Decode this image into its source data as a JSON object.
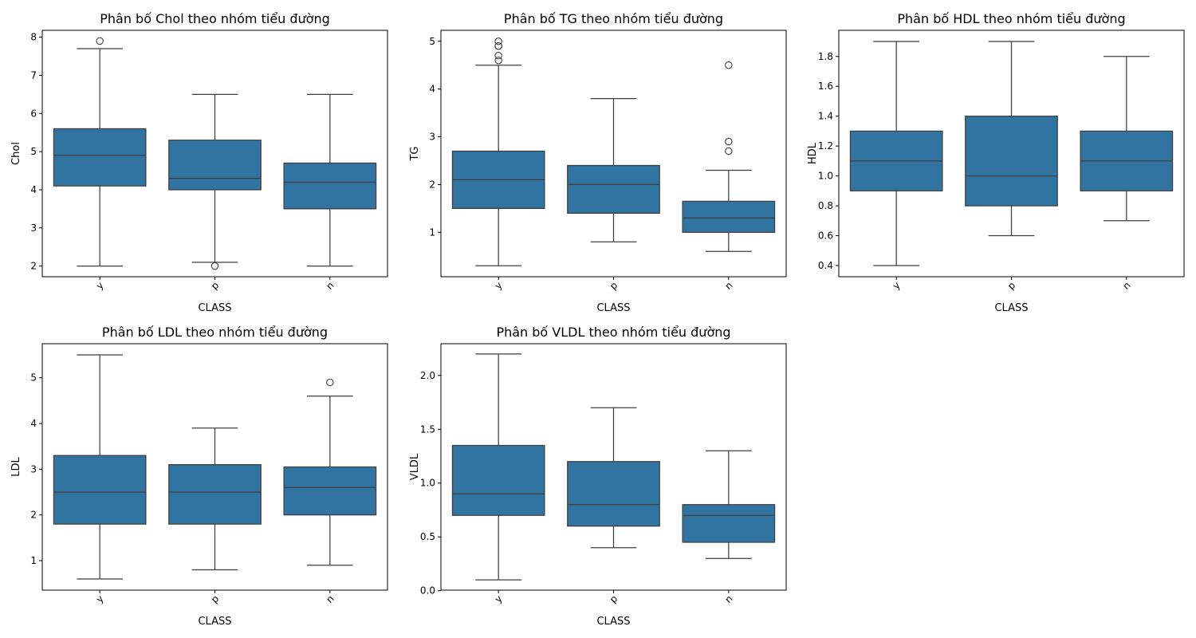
{
  "chart_data": [
    {
      "type": "box",
      "title": "Phân bố Chol theo nhóm tiểu đường",
      "xlabel": "CLASS",
      "ylabel": "Chol",
      "categories": [
        "y",
        "p",
        "n"
      ],
      "ylim": [
        1.72,
        8.18
      ],
      "yticks": [
        2,
        3,
        4,
        5,
        6,
        7,
        8
      ],
      "ytick_labels": [
        "2",
        "3",
        "4",
        "5",
        "6",
        "7",
        "8"
      ],
      "color": "#3274a1",
      "boxes": [
        {
          "category": "y",
          "whisker_low": 2.0,
          "q1": 4.1,
          "median": 4.9,
          "q3": 5.6,
          "whisker_high": 7.7,
          "outliers": [
            7.9
          ]
        },
        {
          "category": "p",
          "whisker_low": 2.1,
          "q1": 4.0,
          "median": 4.3,
          "q3": 5.3,
          "whisker_high": 6.5,
          "outliers": [
            2.0
          ]
        },
        {
          "category": "n",
          "whisker_low": 2.0,
          "q1": 3.5,
          "median": 4.2,
          "q3": 4.7,
          "whisker_high": 6.5,
          "outliers": []
        }
      ]
    },
    {
      "type": "box",
      "title": "Phân bố TG theo nhóm tiểu đường",
      "xlabel": "CLASS",
      "ylabel": "TG",
      "categories": [
        "y",
        "p",
        "n"
      ],
      "ylim": [
        0.07,
        5.23
      ],
      "yticks": [
        1,
        2,
        3,
        4,
        5
      ],
      "ytick_labels": [
        "1",
        "2",
        "3",
        "4",
        "5"
      ],
      "color": "#3274a1",
      "boxes": [
        {
          "category": "y",
          "whisker_low": 0.3,
          "q1": 1.5,
          "median": 2.1,
          "q3": 2.7,
          "whisker_high": 4.5,
          "outliers": [
            4.6,
            4.7,
            4.9,
            4.9,
            5.0
          ]
        },
        {
          "category": "p",
          "whisker_low": 0.8,
          "q1": 1.4,
          "median": 2.0,
          "q3": 2.4,
          "whisker_high": 3.8,
          "outliers": []
        },
        {
          "category": "n",
          "whisker_low": 0.6,
          "q1": 1.0,
          "median": 1.3,
          "q3": 1.65,
          "whisker_high": 2.3,
          "outliers": [
            2.7,
            2.9,
            4.5
          ]
        }
      ]
    },
    {
      "type": "box",
      "title": "Phân bố HDL theo nhóm tiểu đường",
      "xlabel": "CLASS",
      "ylabel": "HDL",
      "categories": [
        "y",
        "p",
        "n"
      ],
      "ylim": [
        0.325,
        1.975
      ],
      "yticks": [
        0.4,
        0.6,
        0.8,
        1.0,
        1.2,
        1.4,
        1.6,
        1.8
      ],
      "ytick_labels": [
        "0.4",
        "0.6",
        "0.8",
        "1.0",
        "1.2",
        "1.4",
        "1.6",
        "1.8"
      ],
      "color": "#3274a1",
      "boxes": [
        {
          "category": "y",
          "whisker_low": 0.4,
          "q1": 0.9,
          "median": 1.1,
          "q3": 1.3,
          "whisker_high": 1.9,
          "outliers": []
        },
        {
          "category": "p",
          "whisker_low": 0.6,
          "q1": 0.8,
          "median": 1.0,
          "q3": 1.4,
          "whisker_high": 1.9,
          "outliers": []
        },
        {
          "category": "n",
          "whisker_low": 0.7,
          "q1": 0.9,
          "median": 1.1,
          "q3": 1.3,
          "whisker_high": 1.8,
          "outliers": []
        }
      ]
    },
    {
      "type": "box",
      "title": "Phân bố LDL theo nhóm tiểu đường",
      "xlabel": "CLASS",
      "ylabel": "LDL",
      "categories": [
        "y",
        "p",
        "n"
      ],
      "ylim": [
        0.355,
        5.745
      ],
      "yticks": [
        1,
        2,
        3,
        4,
        5
      ],
      "ytick_labels": [
        "1",
        "2",
        "3",
        "4",
        "5"
      ],
      "color": "#3274a1",
      "boxes": [
        {
          "category": "y",
          "whisker_low": 0.6,
          "q1": 1.8,
          "median": 2.5,
          "q3": 3.3,
          "whisker_high": 5.5,
          "outliers": []
        },
        {
          "category": "p",
          "whisker_low": 0.8,
          "q1": 1.8,
          "median": 2.5,
          "q3": 3.1,
          "whisker_high": 3.9,
          "outliers": []
        },
        {
          "category": "n",
          "whisker_low": 0.9,
          "q1": 2.0,
          "median": 2.6,
          "q3": 3.05,
          "whisker_high": 4.6,
          "outliers": [
            4.9
          ]
        }
      ]
    },
    {
      "type": "box",
      "title": "Phân bố VLDL theo nhóm tiểu đường",
      "xlabel": "CLASS",
      "ylabel": "VLDL",
      "categories": [
        "y",
        "p",
        "n"
      ],
      "ylim": [
        0.005,
        2.295
      ],
      "yticks": [
        0.0,
        0.5,
        1.0,
        1.5,
        2.0
      ],
      "ytick_labels": [
        "0.0",
        "0.5",
        "1.0",
        "1.5",
        "2.0"
      ],
      "color": "#3274a1",
      "boxes": [
        {
          "category": "y",
          "whisker_low": 0.1,
          "q1": 0.7,
          "median": 0.9,
          "q3": 1.35,
          "whisker_high": 2.2,
          "outliers": []
        },
        {
          "category": "p",
          "whisker_low": 0.4,
          "q1": 0.6,
          "median": 0.8,
          "q3": 1.2,
          "whisker_high": 1.7,
          "outliers": []
        },
        {
          "category": "n",
          "whisker_low": 0.3,
          "q1": 0.45,
          "median": 0.7,
          "q3": 0.8,
          "whisker_high": 1.3,
          "outliers": []
        }
      ]
    }
  ]
}
